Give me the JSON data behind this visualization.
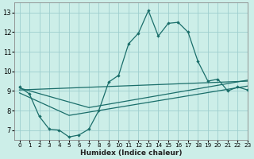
{
  "xlabel": "Humidex (Indice chaleur)",
  "xlim": [
    -0.5,
    23
  ],
  "ylim": [
    6.5,
    13.5
  ],
  "yticks": [
    7,
    8,
    9,
    10,
    11,
    12,
    13
  ],
  "xticks": [
    0,
    1,
    2,
    3,
    4,
    5,
    6,
    7,
    8,
    9,
    10,
    11,
    12,
    13,
    14,
    15,
    16,
    17,
    18,
    19,
    20,
    21,
    22,
    23
  ],
  "bg_color": "#cceee8",
  "grid_color": "#9ecece",
  "line_color": "#1a6e6a",
  "line1_x": [
    0,
    1,
    2,
    3,
    4,
    5,
    6,
    7,
    8,
    9,
    10,
    11,
    12,
    13,
    14,
    15,
    16,
    17,
    18,
    19,
    20,
    21,
    22,
    23
  ],
  "line1_y": [
    9.2,
    8.85,
    7.7,
    7.05,
    7.0,
    6.65,
    6.75,
    7.05,
    8.0,
    9.45,
    9.8,
    11.4,
    11.95,
    13.1,
    11.8,
    12.45,
    12.5,
    12.0,
    10.5,
    9.5,
    9.6,
    9.0,
    9.2,
    9.05
  ],
  "line2_x": [
    0,
    7,
    23
  ],
  "line2_y": [
    9.15,
    8.15,
    9.55
  ],
  "line3_x": [
    0,
    5,
    23
  ],
  "line3_y": [
    8.9,
    7.75,
    9.25
  ],
  "line4_x": [
    0,
    23
  ],
  "line4_y": [
    9.05,
    9.5
  ]
}
